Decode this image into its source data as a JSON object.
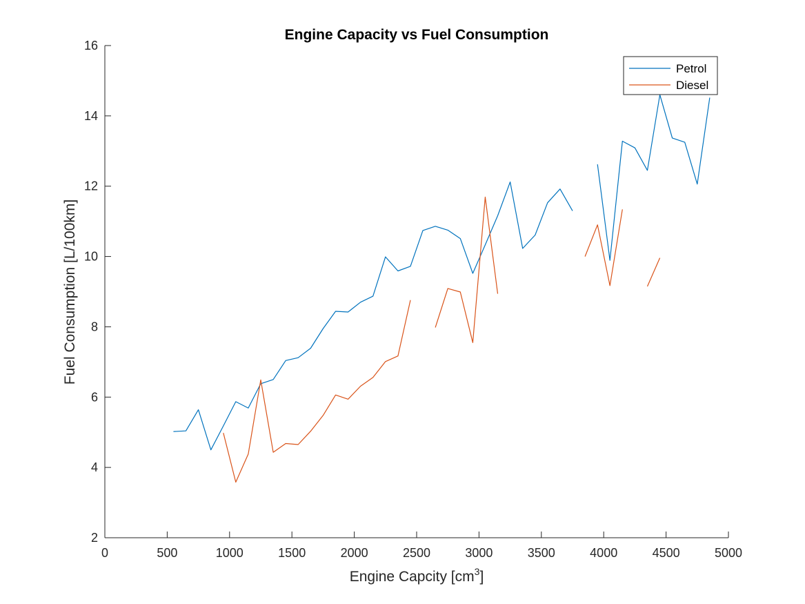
{
  "chart_data": {
    "type": "line",
    "title": "Engine Capacity vs Fuel Consumption",
    "xlabel": "Engine Capcity [cm",
    "xlabel_sup": "3",
    "xlabel_end": "]",
    "ylabel": "Fuel Consumption [L/100km]",
    "xlim": [
      0,
      5000
    ],
    "ylim": [
      2,
      16
    ],
    "xticks": [
      0,
      500,
      1000,
      1500,
      2000,
      2500,
      3000,
      3500,
      4000,
      4500,
      5000
    ],
    "yticks": [
      2,
      4,
      6,
      8,
      10,
      12,
      14,
      16
    ],
    "grid": false,
    "legend_position": "top-right",
    "series": [
      {
        "name": "Petrol",
        "color": "#0072BD",
        "x": [
          550,
          650,
          750,
          850,
          950,
          1050,
          1150,
          1250,
          1350,
          1450,
          1550,
          1650,
          1750,
          1850,
          1950,
          2050,
          2150,
          2250,
          2350,
          2450,
          2550,
          2650,
          2750,
          2850,
          2950,
          3050,
          3150,
          3250,
          3350,
          3450,
          3550,
          3650,
          3750,
          3850,
          3950,
          4050,
          4150,
          4250,
          4350,
          4450,
          4550,
          4650,
          4750,
          4850
        ],
        "y": [
          5.02,
          5.04,
          5.64,
          4.5,
          5.18,
          5.87,
          5.69,
          6.38,
          6.5,
          7.04,
          7.12,
          7.39,
          7.95,
          8.44,
          8.42,
          8.7,
          8.87,
          9.99,
          9.59,
          9.72,
          10.74,
          10.86,
          10.75,
          10.51,
          9.52,
          10.33,
          11.16,
          12.12,
          10.23,
          10.61,
          11.53,
          11.92,
          11.3,
          null,
          12.62,
          9.89,
          13.28,
          13.09,
          12.45,
          14.6,
          13.37,
          13.25,
          12.06,
          14.52
        ]
      },
      {
        "name": "Diesel",
        "color": "#D95319",
        "x": [
          950,
          1050,
          1150,
          1250,
          1350,
          1450,
          1550,
          1650,
          1750,
          1850,
          1950,
          2050,
          2150,
          2250,
          2350,
          2450,
          2550,
          2650,
          2750,
          2850,
          2950,
          3050,
          3150,
          3250,
          3350,
          3450,
          3550,
          3650,
          3750,
          3850,
          3950,
          4050,
          4150,
          4250,
          4350,
          4450
        ],
        "y": [
          4.98,
          3.58,
          4.38,
          6.49,
          4.43,
          4.68,
          4.65,
          5.03,
          5.48,
          6.06,
          5.94,
          6.31,
          6.56,
          7.01,
          7.17,
          8.76,
          null,
          7.98,
          9.09,
          8.99,
          7.55,
          11.69,
          8.94,
          null,
          null,
          null,
          null,
          null,
          null,
          10.0,
          10.9,
          9.17,
          11.34,
          null,
          9.15,
          9.96
        ]
      }
    ]
  }
}
